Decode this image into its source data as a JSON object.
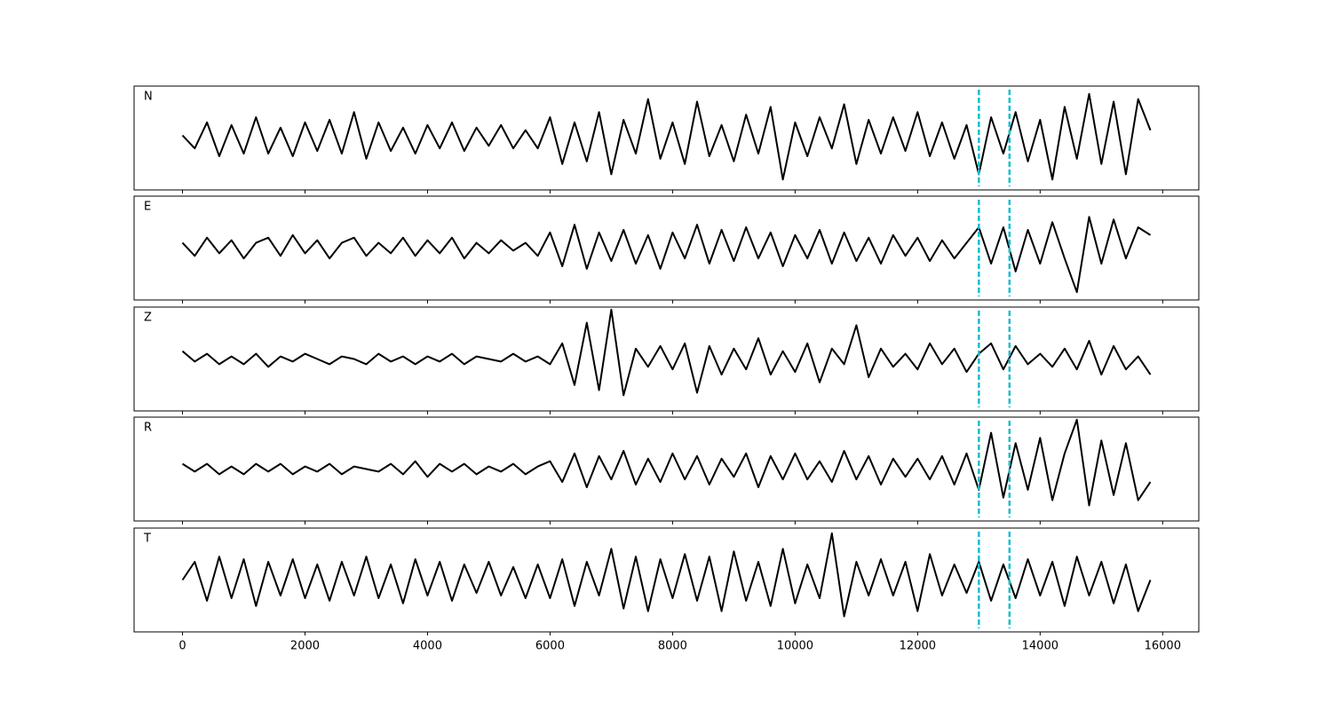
{
  "chart_data": {
    "type": "line",
    "x": [
      0,
      200,
      400,
      600,
      800,
      1000,
      1200,
      1400,
      1600,
      1800,
      2000,
      2200,
      2400,
      2600,
      2800,
      3000,
      3200,
      3400,
      3600,
      3800,
      4000,
      4200,
      4400,
      4600,
      4800,
      5000,
      5200,
      5400,
      5600,
      5800,
      6000,
      6200,
      6400,
      6600,
      6800,
      7000,
      7200,
      7400,
      7600,
      7800,
      8000,
      8200,
      8400,
      8600,
      8800,
      9000,
      9200,
      9400,
      9600,
      9800,
      10000,
      10200,
      10400,
      10600,
      10800,
      11000,
      11200,
      11400,
      11600,
      11800,
      12000,
      12200,
      12400,
      12600,
      12800,
      13000,
      13200,
      13400,
      13600,
      13800,
      14000,
      14200,
      14400,
      14600,
      14800,
      15000,
      15200,
      15400,
      15600,
      15800
    ],
    "series": [
      {
        "name": "N",
        "color": "#000000",
        "values": [
          0.05,
          -0.2,
          0.3,
          -0.35,
          0.25,
          -0.3,
          0.4,
          -0.3,
          0.2,
          -0.35,
          0.3,
          -0.25,
          0.35,
          -0.3,
          0.5,
          -0.4,
          0.3,
          -0.25,
          0.2,
          -0.3,
          0.25,
          -0.2,
          0.3,
          -0.25,
          0.2,
          -0.15,
          0.25,
          -0.2,
          0.15,
          -0.2,
          0.4,
          -0.5,
          0.3,
          -0.45,
          0.5,
          -0.7,
          0.35,
          -0.3,
          0.75,
          -0.4,
          0.3,
          -0.5,
          0.7,
          -0.35,
          0.25,
          -0.45,
          0.45,
          -0.3,
          0.6,
          -0.8,
          0.3,
          -0.35,
          0.4,
          -0.2,
          0.65,
          -0.5,
          0.35,
          -0.3,
          0.4,
          -0.25,
          0.5,
          -0.35,
          0.3,
          -0.4,
          0.25,
          -0.7,
          0.4,
          -0.3,
          0.5,
          -0.45,
          0.35,
          -0.8,
          0.6,
          -0.4,
          0.85,
          -0.5,
          0.7,
          -0.7,
          0.75,
          0.15
        ]
      },
      {
        "name": "E",
        "color": "#000000",
        "values": [
          0.1,
          -0.15,
          0.2,
          -0.1,
          0.15,
          -0.2,
          0.1,
          0.2,
          -0.15,
          0.25,
          -0.1,
          0.15,
          -0.2,
          0.1,
          0.2,
          -0.15,
          0.1,
          -0.1,
          0.2,
          -0.15,
          0.15,
          -0.1,
          0.2,
          -0.2,
          0.1,
          -0.1,
          0.15,
          -0.05,
          0.1,
          -0.15,
          0.3,
          -0.35,
          0.45,
          -0.4,
          0.3,
          -0.25,
          0.35,
          -0.3,
          0.25,
          -0.4,
          0.3,
          -0.2,
          0.45,
          -0.3,
          0.35,
          -0.25,
          0.4,
          -0.2,
          0.3,
          -0.35,
          0.25,
          -0.2,
          0.35,
          -0.3,
          0.3,
          -0.25,
          0.2,
          -0.3,
          0.25,
          -0.15,
          0.2,
          -0.25,
          0.15,
          -0.2,
          0.1,
          0.4,
          -0.3,
          0.4,
          -0.45,
          0.35,
          -0.3,
          0.5,
          -0.2,
          -0.85,
          0.6,
          -0.3,
          0.55,
          -0.2,
          0.4,
          0.25
        ]
      },
      {
        "name": "Z",
        "color": "#000000",
        "values": [
          0.15,
          -0.05,
          0.1,
          -0.1,
          0.05,
          -0.1,
          0.1,
          -0.15,
          0.05,
          -0.05,
          0.1,
          0.0,
          -0.1,
          0.05,
          0.0,
          -0.1,
          0.1,
          -0.05,
          0.05,
          -0.1,
          0.05,
          -0.05,
          0.1,
          -0.1,
          0.05,
          0.0,
          -0.05,
          0.1,
          -0.05,
          0.05,
          -0.1,
          0.3,
          -0.5,
          0.7,
          -0.6,
          0.95,
          -0.7,
          0.2,
          -0.15,
          0.25,
          -0.2,
          0.3,
          -0.65,
          0.25,
          -0.3,
          0.2,
          -0.2,
          0.4,
          -0.3,
          0.15,
          -0.25,
          0.3,
          -0.45,
          0.2,
          -0.1,
          0.65,
          -0.35,
          0.2,
          -0.15,
          0.1,
          -0.2,
          0.3,
          -0.1,
          0.2,
          -0.25,
          0.1,
          0.3,
          -0.2,
          0.25,
          -0.1,
          0.1,
          -0.15,
          0.2,
          -0.2,
          0.35,
          -0.3,
          0.25,
          -0.2,
          0.05,
          -0.3
        ]
      },
      {
        "name": "R",
        "color": "#000000",
        "values": [
          0.1,
          -0.05,
          0.1,
          -0.1,
          0.05,
          -0.1,
          0.1,
          -0.05,
          0.1,
          -0.1,
          0.05,
          -0.05,
          0.1,
          -0.1,
          0.05,
          0.0,
          -0.05,
          0.1,
          -0.1,
          0.15,
          -0.15,
          0.1,
          -0.05,
          0.1,
          -0.1,
          0.05,
          -0.05,
          0.1,
          -0.1,
          0.05,
          0.15,
          -0.25,
          0.3,
          -0.35,
          0.25,
          -0.2,
          0.35,
          -0.3,
          0.2,
          -0.25,
          0.3,
          -0.2,
          0.25,
          -0.3,
          0.2,
          -0.15,
          0.3,
          -0.35,
          0.25,
          -0.2,
          0.3,
          -0.2,
          0.15,
          -0.25,
          0.35,
          -0.2,
          0.25,
          -0.3,
          0.2,
          -0.15,
          0.2,
          -0.2,
          0.25,
          -0.3,
          0.3,
          -0.4,
          0.7,
          -0.55,
          0.5,
          -0.4,
          0.6,
          -0.6,
          0.3,
          0.95,
          -0.7,
          0.55,
          -0.5,
          0.5,
          -0.6,
          -0.25
        ]
      },
      {
        "name": "T",
        "color": "#000000",
        "values": [
          0.0,
          0.35,
          -0.4,
          0.45,
          -0.35,
          0.4,
          -0.5,
          0.35,
          -0.3,
          0.4,
          -0.35,
          0.3,
          -0.4,
          0.35,
          -0.3,
          0.45,
          -0.35,
          0.3,
          -0.45,
          0.4,
          -0.3,
          0.35,
          -0.4,
          0.3,
          -0.25,
          0.35,
          -0.3,
          0.25,
          -0.35,
          0.3,
          -0.35,
          0.4,
          -0.5,
          0.35,
          -0.3,
          0.6,
          -0.55,
          0.45,
          -0.6,
          0.4,
          -0.35,
          0.5,
          -0.4,
          0.45,
          -0.6,
          0.55,
          -0.4,
          0.35,
          -0.5,
          0.6,
          -0.45,
          0.3,
          -0.35,
          0.9,
          -0.7,
          0.35,
          -0.3,
          0.4,
          -0.3,
          0.35,
          -0.6,
          0.5,
          -0.3,
          0.3,
          -0.25,
          0.35,
          -0.4,
          0.3,
          -0.35,
          0.4,
          -0.3,
          0.35,
          -0.5,
          0.45,
          -0.3,
          0.35,
          -0.45,
          0.3,
          -0.6,
          0.0
        ]
      }
    ],
    "xlim": [
      -790,
      16590
    ],
    "xticks": [
      0,
      2000,
      4000,
      6000,
      8000,
      10000,
      12000,
      14000,
      16000
    ],
    "ylim": [
      -1,
      1
    ],
    "vlines": [
      13000,
      13500
    ],
    "vline_color": "#17becf"
  }
}
